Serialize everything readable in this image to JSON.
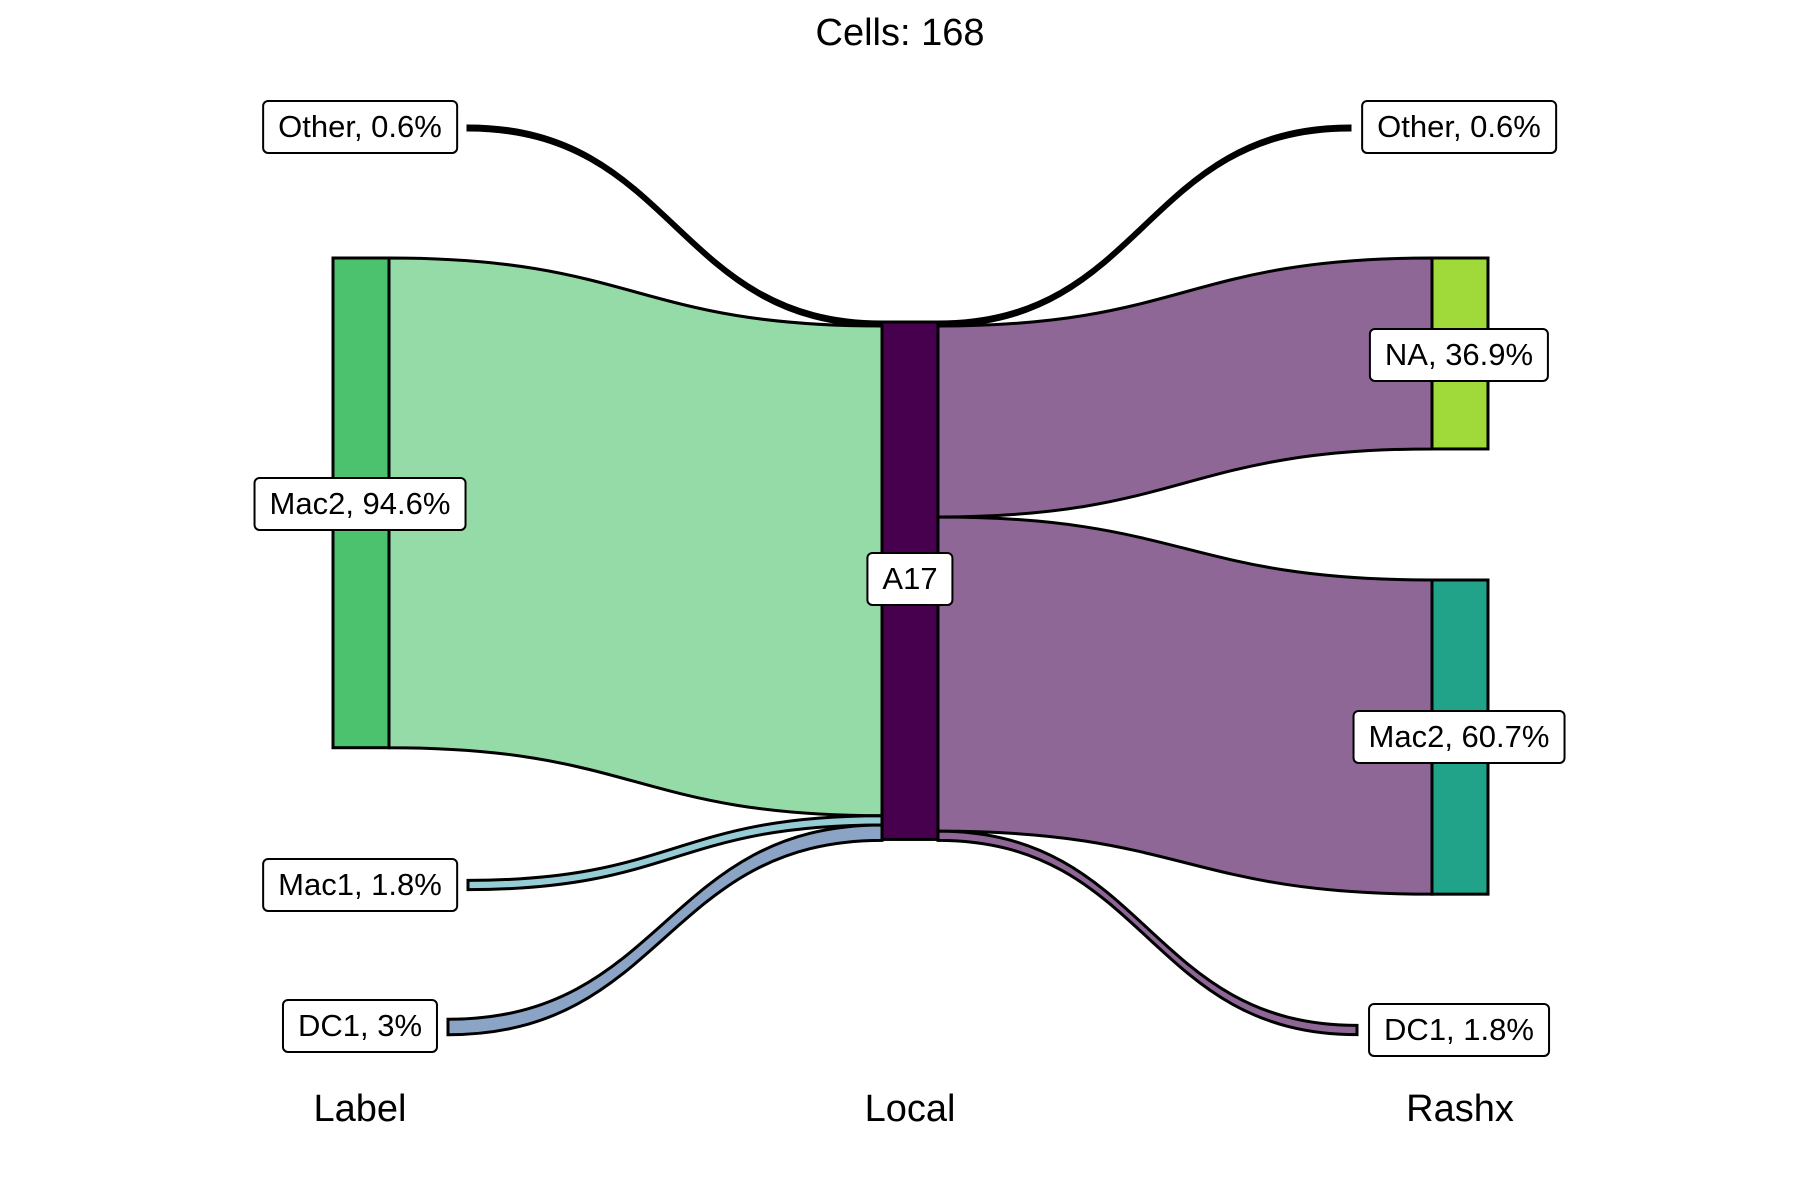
{
  "chart_data": {
    "type": "sankey",
    "title": "Cells:  168",
    "axes": [
      "Label",
      "Local",
      "Rashx"
    ],
    "nodes": {
      "left": [
        {
          "id": "L_Other",
          "text": "Other, 0.6%",
          "value": 1,
          "fill": "#000000"
        },
        {
          "id": "L_Mac2",
          "text": "Mac2, 94.6%",
          "value": 159,
          "fill": "#4CC26E"
        },
        {
          "id": "L_Mac1",
          "text": "Mac1, 1.8%",
          "value": 3,
          "fill": "#7FC3CF"
        },
        {
          "id": "L_DC1",
          "text": "DC1, 3%",
          "value": 5,
          "fill": "#8BA3C4"
        }
      ],
      "middle": [
        {
          "id": "A17",
          "text": "A17",
          "value": 168,
          "fill": "#46004E"
        }
      ],
      "right": [
        {
          "id": "R_Other",
          "text": "Other, 0.6%",
          "value": 1,
          "fill": "#000000"
        },
        {
          "id": "R_NA",
          "text": "NA, 36.9%",
          "value": 62,
          "fill": "#A0DA3A"
        },
        {
          "id": "R_Mac2",
          "text": "Mac2, 60.7%",
          "value": 102,
          "fill": "#21A38A"
        },
        {
          "id": "R_DC1",
          "text": "DC1, 1.8%",
          "value": 3,
          "fill": "#8E6797"
        }
      ]
    },
    "links": [
      {
        "source": "L_Other",
        "target": "A17",
        "value": 1,
        "color": "#000000"
      },
      {
        "source": "L_Mac2",
        "target": "A17",
        "value": 159,
        "color": "#95DBA8"
      },
      {
        "source": "L_Mac1",
        "target": "A17",
        "value": 3,
        "color": "#95CCD5"
      },
      {
        "source": "L_DC1",
        "target": "A17",
        "value": 5,
        "color": "#8BA3C4"
      },
      {
        "source": "A17",
        "target": "R_Other",
        "value": 1,
        "color": "#000000"
      },
      {
        "source": "A17",
        "target": "R_NA",
        "value": 62,
        "color": "#8E6797"
      },
      {
        "source": "A17",
        "target": "R_Mac2",
        "value": 102,
        "color": "#8E6797"
      },
      {
        "source": "A17",
        "target": "R_DC1",
        "value": 3,
        "color": "#8E6797"
      }
    ]
  }
}
